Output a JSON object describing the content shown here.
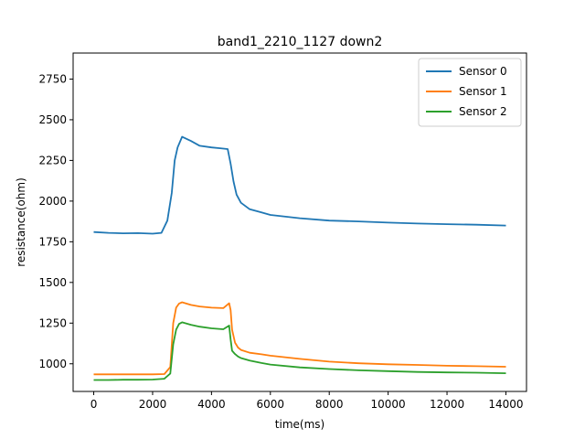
{
  "chart_data": {
    "type": "line",
    "title": "band1_2210_1127 down2",
    "xlabel": "time(ms)",
    "ylabel": "resistance(ohm)",
    "xlim": [
      -700,
      14700
    ],
    "ylim": [
      830,
      2910
    ],
    "xticks": [
      0,
      2000,
      4000,
      6000,
      8000,
      10000,
      12000,
      14000
    ],
    "yticks": [
      1000,
      1250,
      1500,
      1750,
      2000,
      2250,
      2500,
      2750
    ],
    "grid": false,
    "legend_position": "top-right",
    "series": [
      {
        "name": "Sensor 0",
        "color": "#1f77b4",
        "x": [
          0,
          500,
          1000,
          1500,
          2000,
          2300,
          2500,
          2650,
          2750,
          2850,
          3000,
          3300,
          3600,
          4000,
          4300,
          4550,
          4650,
          4750,
          4850,
          5000,
          5300,
          5700,
          6000,
          7000,
          8000,
          9000,
          10000,
          11000,
          12000,
          13000,
          14000
        ],
        "y": [
          1810,
          1805,
          1802,
          1803,
          1800,
          1805,
          1880,
          2050,
          2250,
          2330,
          2395,
          2370,
          2340,
          2330,
          2325,
          2320,
          2230,
          2120,
          2040,
          1990,
          1950,
          1930,
          1915,
          1895,
          1880,
          1875,
          1868,
          1862,
          1858,
          1855,
          1850
        ]
      },
      {
        "name": "Sensor 1",
        "color": "#ff7f0e",
        "x": [
          0,
          500,
          1000,
          1500,
          2000,
          2400,
          2600,
          2700,
          2800,
          2900,
          3000,
          3300,
          3600,
          4000,
          4400,
          4600,
          4650,
          4700,
          4800,
          4900,
          5000,
          5300,
          5700,
          6000,
          7000,
          8000,
          9000,
          10000,
          11000,
          12000,
          13000,
          14000
        ],
        "y": [
          935,
          935,
          935,
          935,
          935,
          937,
          980,
          1250,
          1345,
          1370,
          1378,
          1362,
          1352,
          1345,
          1342,
          1372,
          1330,
          1210,
          1130,
          1100,
          1085,
          1068,
          1058,
          1050,
          1030,
          1013,
          1003,
          997,
          993,
          988,
          985,
          982
        ]
      },
      {
        "name": "Sensor 2",
        "color": "#2ca02c",
        "x": [
          0,
          500,
          1000,
          1500,
          2000,
          2400,
          2600,
          2700,
          2800,
          2900,
          3000,
          3300,
          3600,
          4000,
          4400,
          4600,
          4650,
          4700,
          4800,
          4900,
          5000,
          5300,
          5700,
          6000,
          7000,
          8000,
          9000,
          10000,
          11000,
          12000,
          13000,
          14000
        ],
        "y": [
          900,
          900,
          902,
          902,
          903,
          908,
          940,
          1120,
          1210,
          1245,
          1255,
          1240,
          1228,
          1218,
          1212,
          1235,
          1150,
          1080,
          1060,
          1045,
          1035,
          1020,
          1005,
          995,
          978,
          968,
          960,
          955,
          950,
          947,
          945,
          942
        ]
      }
    ]
  }
}
